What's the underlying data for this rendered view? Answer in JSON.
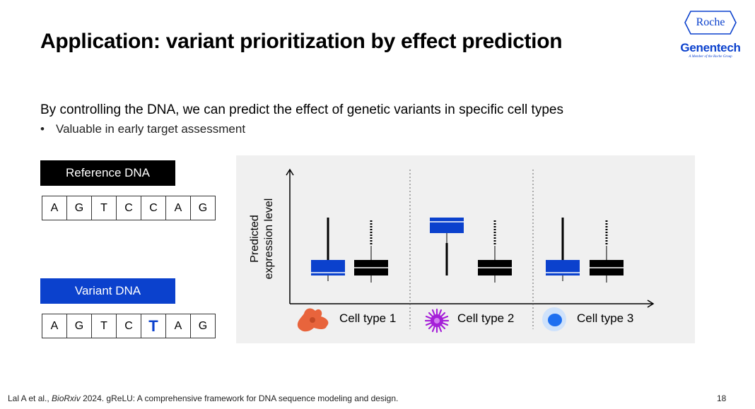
{
  "slide": {
    "title": "Application: variant prioritization by effect prediction",
    "subtitle": "By controlling the DNA, we can predict the effect of genetic variants in specific cell types",
    "bullet": "Valuable in early target assessment",
    "page_number": "18"
  },
  "logo": {
    "roche": "Roche",
    "genentech": "Genentech",
    "tagline": "A Member of the Roche Group"
  },
  "reference": {
    "label": "Reference DNA",
    "sequence": [
      "A",
      "G",
      "T",
      "C",
      "C",
      "A",
      "G"
    ]
  },
  "variant": {
    "label": "Variant DNA",
    "sequence": [
      "A",
      "G",
      "T",
      "C",
      "T",
      "A",
      "G"
    ],
    "mutated_index": 4
  },
  "plot": {
    "ylabel_line1": "Predicted",
    "ylabel_line2": "expression level",
    "cell_types": [
      "Cell type 1",
      "Cell type 2",
      "Cell type 3"
    ]
  },
  "footer": {
    "citation_prefix": "Lal A et al., ",
    "citation_journal": "BioRxiv",
    "citation_suffix": " 2024. gReLU: A comprehensive framework for DNA sequence modeling and design."
  },
  "colors": {
    "variant_blue": "#0b41cd",
    "reference_black": "#000000",
    "panel_bg": "#f0f0f0",
    "cell1": "#e8643c",
    "cell2": "#a51fd8",
    "cell3": "#1e6ff0"
  }
}
